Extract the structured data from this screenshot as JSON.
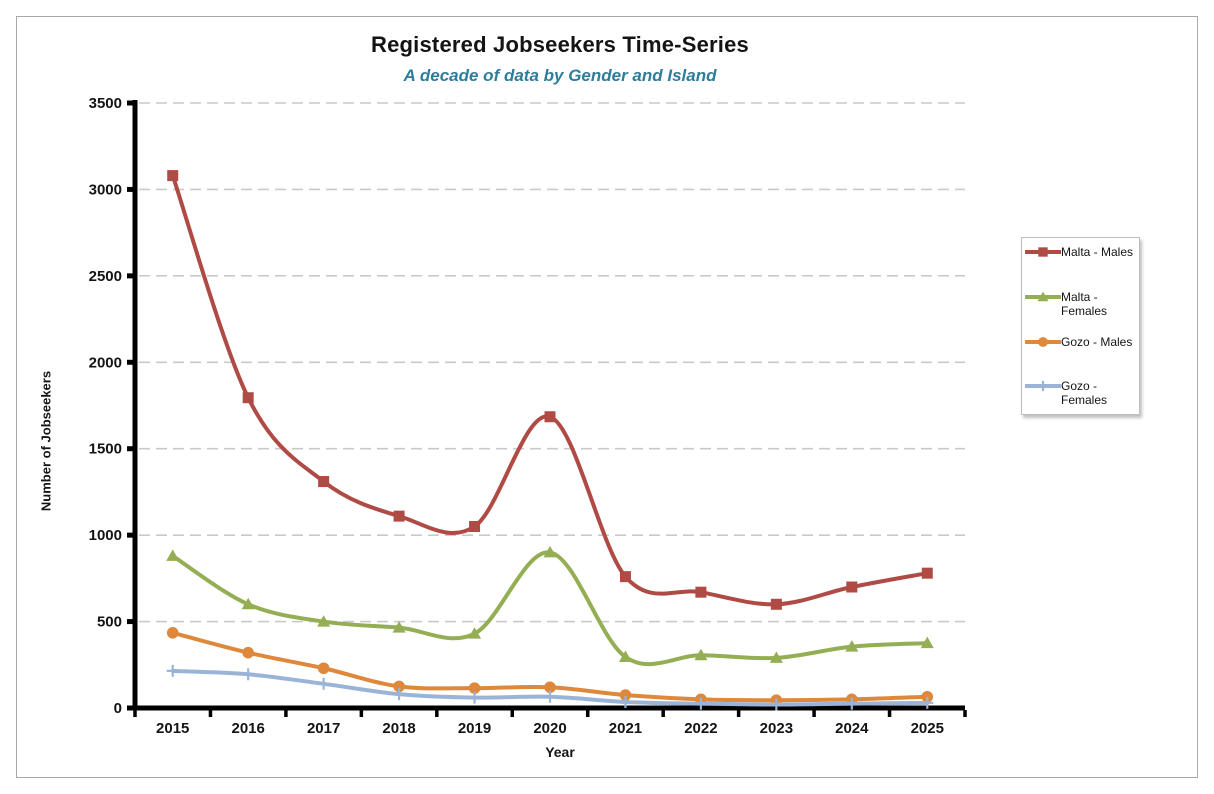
{
  "header": {
    "title": "Registered Jobseekers Time-Series",
    "subtitle": "A decade of data by Gender and Island"
  },
  "colors": {
    "subtitle_accent": "#2e7d9b",
    "gridline": "#c9c9c9",
    "axis": "#000000"
  },
  "chart_data": {
    "type": "line",
    "smooth": true,
    "grid": "horizontal dashed",
    "legend_position": "right",
    "title": "Registered Jobseekers Time-Series",
    "subtitle": "A decade of data by Gender and Island",
    "xlabel": "Year",
    "ylabel": "Number of Jobseekers",
    "x": [
      "2015",
      "2016",
      "2017",
      "2018",
      "2019",
      "2020",
      "2021",
      "2022",
      "2023",
      "2024",
      "2025"
    ],
    "ylim": [
      0,
      3500
    ],
    "y_tick_step": 500,
    "y_ticks": [
      0,
      500,
      1000,
      1500,
      2000,
      2500,
      3000,
      3500
    ],
    "series": [
      {
        "name": "Malta - Males",
        "color": "#b04a45",
        "marker": "square",
        "values": [
          3080,
          1795,
          1310,
          1110,
          1050,
          1685,
          760,
          670,
          600,
          700,
          780
        ]
      },
      {
        "name": "Malta - Females",
        "color": "#94ae54",
        "marker": "triangle",
        "values": [
          880,
          600,
          500,
          465,
          430,
          900,
          295,
          305,
          290,
          355,
          375
        ]
      },
      {
        "name": "Gozo - Males",
        "color": "#de883c",
        "marker": "circle",
        "values": [
          435,
          320,
          230,
          125,
          115,
          120,
          75,
          50,
          45,
          50,
          65
        ]
      },
      {
        "name": "Gozo - Females",
        "color": "#9ab4d8",
        "marker": "plus",
        "values": [
          215,
          195,
          140,
          80,
          60,
          65,
          35,
          25,
          20,
          25,
          30
        ]
      }
    ]
  }
}
